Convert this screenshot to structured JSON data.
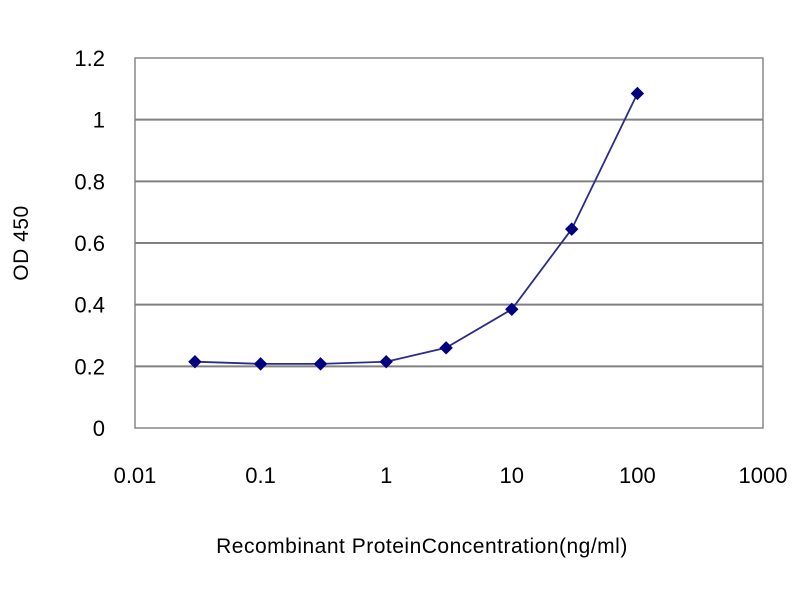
{
  "chart_data": {
    "type": "line",
    "title": "",
    "xlabel": "Recombinant ProteinConcentration(ng/ml)",
    "ylabel": "OD 450",
    "x_scale": "log",
    "xlim": [
      0.01,
      1000
    ],
    "ylim": [
      0,
      1.2
    ],
    "x_ticks": [
      "0.01",
      "0.1",
      "1",
      "10",
      "100",
      "1000"
    ],
    "y_ticks": [
      "0",
      "0.2",
      "0.4",
      "0.6",
      "0.8",
      "1",
      "1.2"
    ],
    "grid": "horizontal",
    "legend": "none",
    "series": [
      {
        "x": [
          0.03,
          0.1,
          0.3,
          1,
          3,
          10,
          30,
          100
        ],
        "y": [
          0.215,
          0.208,
          0.208,
          0.215,
          0.26,
          0.385,
          0.645,
          1.085
        ],
        "color": "#2c2c8c",
        "marker": "diamond",
        "marker_color": "#000080"
      }
    ]
  }
}
